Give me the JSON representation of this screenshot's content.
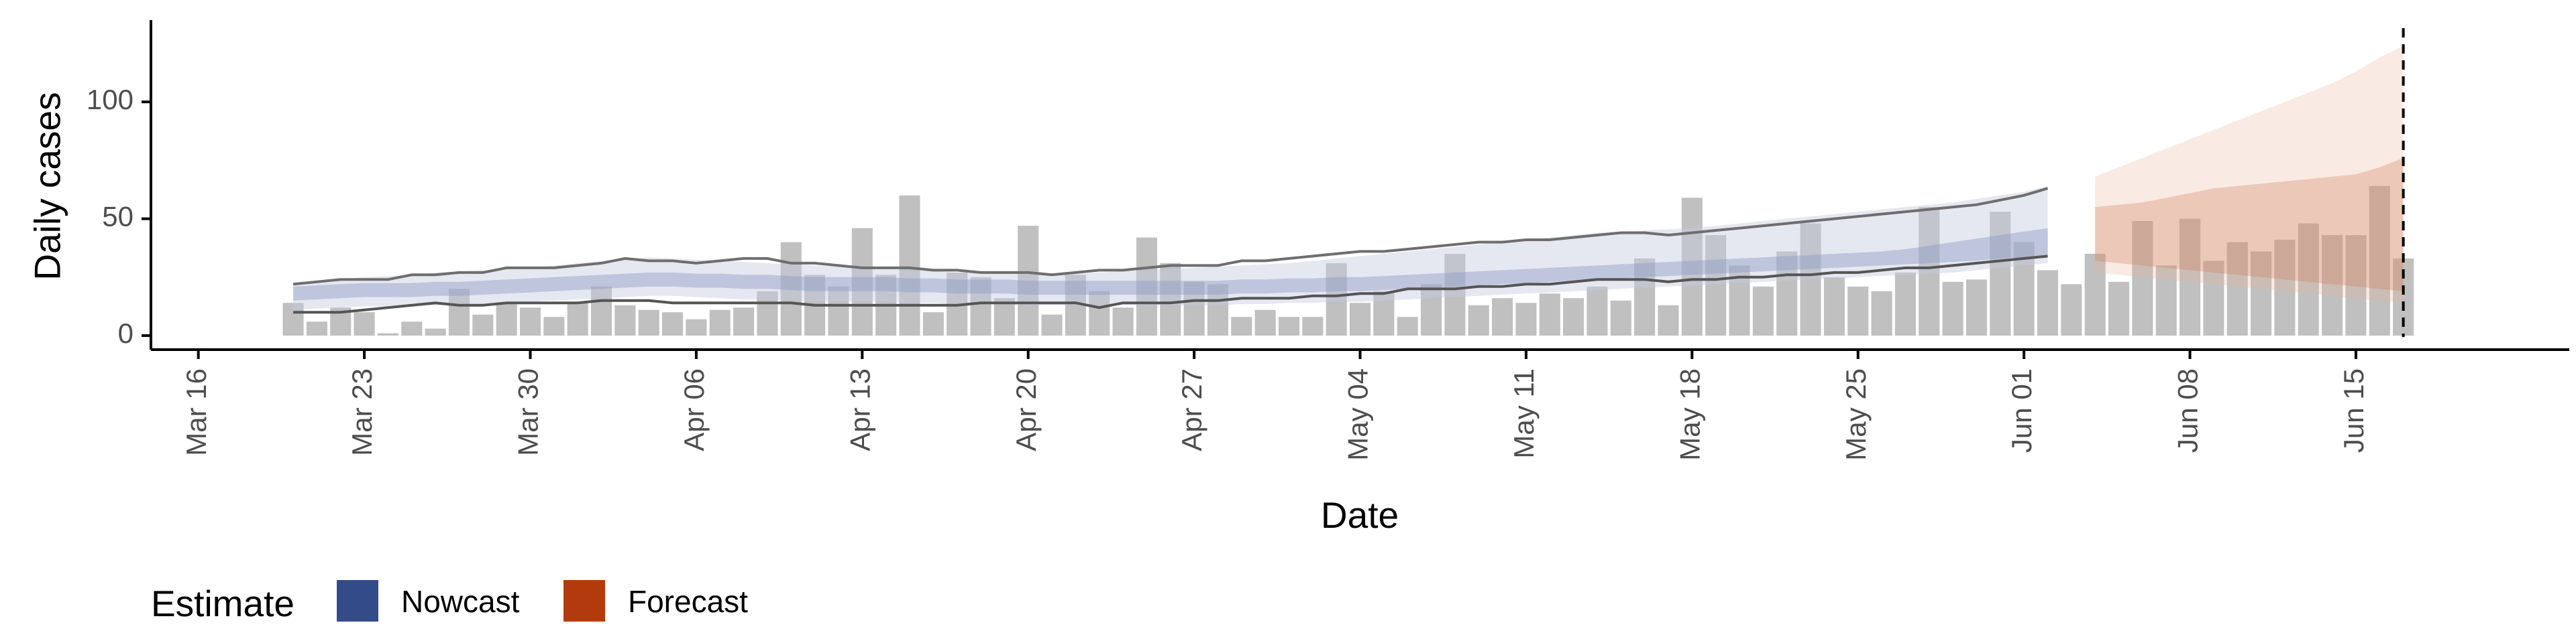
{
  "chart_data": {
    "type": "bar",
    "xlabel": "Date",
    "ylabel": "Daily cases",
    "x_ticks": [
      "Mar 16",
      "Mar 23",
      "Mar 30",
      "Apr 06",
      "Apr 13",
      "Apr 20",
      "Apr 27",
      "May 04",
      "May 11",
      "May 18",
      "May 25",
      "Jun 01",
      "Jun 08",
      "Jun 15"
    ],
    "y_ticks": [
      0,
      50,
      100
    ],
    "ylim": [
      -6,
      135
    ],
    "xlim": [
      "2020-03-14",
      "2020-06-24"
    ],
    "grid": false,
    "legend": {
      "title": "Estimate",
      "position": "bottom-left",
      "items": [
        {
          "label": "Nowcast",
          "color": "#344b8a"
        },
        {
          "label": "Forecast",
          "color": "#b33a0c"
        }
      ]
    },
    "bars": {
      "start_date": "2020-03-20",
      "color": "#bdbdbd",
      "values": [
        14,
        6,
        12,
        10,
        1,
        6,
        3,
        20,
        9,
        14,
        12,
        8,
        14,
        21,
        13,
        11,
        10,
        7,
        11,
        12,
        19,
        40,
        26,
        21,
        46,
        26,
        60,
        10,
        27,
        25,
        16,
        47,
        9,
        26,
        19,
        12,
        42,
        31,
        23,
        22,
        8,
        11,
        8,
        8,
        31,
        14,
        19,
        8,
        22,
        35,
        13,
        16,
        14,
        18,
        16,
        21,
        15,
        33,
        13,
        59,
        43,
        30,
        21,
        36,
        48,
        25,
        21,
        19,
        27,
        55,
        23,
        24,
        53,
        40,
        28,
        22,
        35,
        23,
        49,
        30,
        50,
        32,
        40,
        36,
        41,
        48,
        43,
        43,
        64,
        33
      ]
    },
    "series": [
      {
        "name": "Nowcast",
        "start_date": "2020-03-20",
        "median": [
          18,
          18.5,
          19,
          19.5,
          19.5,
          19.5,
          20,
          20,
          20.5,
          21,
          21.5,
          22,
          22.5,
          23,
          23.5,
          24,
          24,
          23.5,
          23.5,
          23,
          23,
          22.5,
          22,
          22,
          22,
          22,
          21.5,
          21.5,
          21,
          21,
          21,
          20.5,
          20.5,
          20.5,
          20.5,
          20.5,
          20.5,
          20.5,
          20.5,
          20.5,
          21,
          21,
          21.5,
          21.5,
          22,
          22,
          22.5,
          23,
          23.5,
          24,
          24.5,
          25,
          25.5,
          26,
          26.5,
          27,
          27.5,
          28,
          28.5,
          29,
          29.5,
          30,
          30.5,
          31,
          31.5,
          32,
          32.5,
          33,
          34,
          35,
          36,
          37,
          38,
          39,
          40
        ],
        "inner_low": [
          15,
          15.5,
          16,
          16.5,
          16.5,
          16.5,
          17,
          17,
          17.5,
          18,
          18.5,
          19,
          19.5,
          20,
          20.5,
          21,
          21,
          20.5,
          20.5,
          20,
          20,
          19.5,
          19,
          19,
          19,
          19,
          18.5,
          18.5,
          18,
          18,
          18,
          17.5,
          17.5,
          17.5,
          17.5,
          17.5,
          17.5,
          17.5,
          17.5,
          17.5,
          18,
          18,
          18.5,
          18.5,
          19,
          19,
          19.5,
          20,
          20.5,
          21,
          21.5,
          22,
          22.5,
          23,
          23.5,
          24,
          24.5,
          25,
          25.5,
          26,
          26.5,
          27,
          27.5,
          28,
          28.5,
          29,
          29.5,
          30,
          30.5,
          31,
          31.5,
          32,
          33,
          33.5,
          34
        ],
        "inner_high": [
          21,
          21.5,
          22,
          22.5,
          22.5,
          22.5,
          23,
          23,
          23.5,
          24,
          24.5,
          25,
          25.5,
          26,
          26.5,
          27,
          27,
          26.5,
          26.5,
          26,
          26,
          25.5,
          25,
          25,
          25,
          25,
          24.5,
          24.5,
          24,
          24,
          24,
          23.5,
          23.5,
          23.5,
          23.5,
          23.5,
          23.5,
          23.5,
          23.5,
          23.5,
          24,
          24,
          24.5,
          24.5,
          25,
          25,
          25.5,
          26,
          26.5,
          27,
          27.5,
          28,
          28.5,
          29,
          29.5,
          30,
          30.5,
          31,
          31.5,
          32,
          32.5,
          33,
          33.5,
          34,
          34.5,
          35,
          35.5,
          36,
          37,
          38.5,
          40,
          41.5,
          43,
          44.5,
          46
        ],
        "outer_low": [
          11,
          11.5,
          12,
          12.5,
          12.5,
          12.5,
          13,
          13,
          13.5,
          14,
          14.5,
          15,
          15.5,
          16,
          16.5,
          17,
          17,
          16.5,
          16,
          15.5,
          15.5,
          15,
          14.5,
          14.5,
          14.5,
          14.5,
          14,
          14,
          13.5,
          13.5,
          13.5,
          13,
          13,
          13,
          13,
          13,
          13,
          13,
          13,
          13,
          13.5,
          13.5,
          14,
          14,
          14.5,
          14.5,
          15,
          15.5,
          16,
          16.5,
          17,
          17.5,
          18,
          18.5,
          19,
          19.5,
          20,
          20.5,
          21,
          21.5,
          22,
          22.5,
          23,
          23.5,
          24,
          24.5,
          25,
          25.5,
          26,
          26.5,
          27,
          28,
          29,
          30,
          31
        ],
        "outer_high": [
          22,
          23,
          24,
          25,
          25.5,
          26,
          27,
          27.5,
          28,
          28.5,
          29,
          30,
          31,
          32,
          33,
          33.5,
          33,
          32.5,
          32,
          31.5,
          31,
          30.5,
          30,
          29.5,
          29,
          28.5,
          28,
          27.5,
          27,
          27,
          27,
          26.5,
          26.5,
          26.5,
          27,
          27.5,
          28,
          28.5,
          29,
          29.5,
          30,
          30.5,
          31,
          32,
          33,
          34,
          35,
          36,
          37,
          38,
          39,
          40,
          41,
          42,
          43,
          44,
          44.5,
          45,
          45.5,
          46,
          47,
          48,
          49,
          50,
          51,
          52,
          53,
          54,
          55,
          56,
          57,
          58.5,
          60,
          61.5,
          64
        ]
      },
      {
        "name": "Forecast",
        "start_date": "2020-06-04",
        "median": [
          40,
          39.5,
          39,
          38.5,
          38,
          37.5,
          37,
          36.5,
          36,
          35.5,
          35,
          34.5,
          34,
          33.5
        ],
        "inner_low": [
          32,
          31,
          30,
          29,
          28,
          27,
          26,
          25,
          24,
          23,
          22,
          21,
          20,
          19
        ],
        "inner_high": [
          55,
          56,
          57,
          59,
          61,
          63,
          64,
          65,
          66,
          67,
          68,
          69,
          72,
          76
        ],
        "outer_low": [
          27,
          26,
          25,
          24,
          23,
          22,
          21,
          20,
          19,
          18,
          17,
          16,
          15,
          14
        ],
        "outer_high": [
          68,
          72,
          76,
          80,
          84,
          88,
          92,
          96,
          100,
          104,
          108,
          113,
          119,
          124
        ]
      }
    ],
    "data_end_date": "2020-06-17",
    "interval_bounds_line": {
      "start_date": "2020-03-20",
      "upper": [
        22,
        23,
        24,
        24,
        24,
        26,
        26,
        27,
        27,
        29,
        29,
        29,
        30,
        31,
        33,
        32,
        32,
        31,
        32,
        33,
        33,
        31,
        31,
        30,
        29,
        29,
        29,
        28,
        28,
        27,
        27,
        27,
        26,
        27,
        28,
        28,
        29,
        30,
        30,
        30,
        32,
        32,
        33,
        34,
        35,
        36,
        36,
        37,
        38,
        39,
        40,
        40,
        41,
        41,
        42,
        43,
        44,
        44,
        43,
        44,
        45,
        46,
        47,
        48,
        49,
        50,
        51,
        52,
        53,
        54,
        55,
        56,
        58,
        60,
        63
      ],
      "lower": [
        10,
        10,
        10,
        11,
        12,
        13,
        14,
        13,
        13,
        14,
        14,
        14,
        14,
        15,
        15,
        15,
        14,
        14,
        14,
        14,
        14,
        14,
        13,
        13,
        13,
        13,
        13,
        13,
        13,
        14,
        14,
        14,
        14,
        14,
        12,
        14,
        14,
        14,
        15,
        15,
        16,
        16,
        16,
        17,
        17,
        18,
        18,
        20,
        20,
        20,
        21,
        21,
        22,
        22,
        23,
        24,
        24,
        24,
        23,
        24,
        24,
        25,
        25,
        26,
        26,
        27,
        27,
        28,
        29,
        29,
        30,
        31,
        32,
        33,
        34
      ]
    }
  }
}
